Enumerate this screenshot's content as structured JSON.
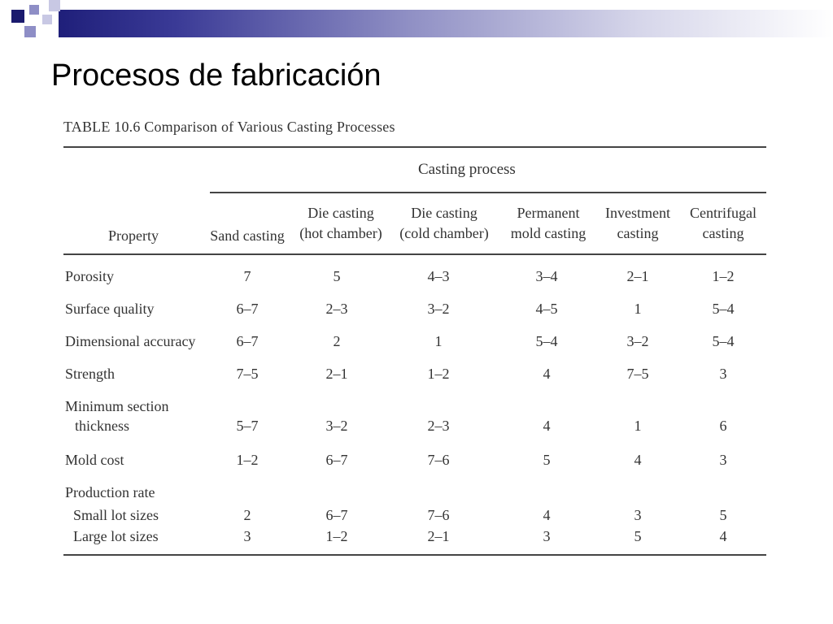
{
  "slide": {
    "title": "Procesos de fabricación"
  },
  "table": {
    "caption": "TABLE 10.6  Comparison of Various Casting Processes",
    "group_header": "Casting process",
    "columns": {
      "property": "Property",
      "c1": [
        "Sand casting"
      ],
      "c2": [
        "Die casting",
        "(hot chamber)"
      ],
      "c3": [
        "Die casting",
        "(cold chamber)"
      ],
      "c4": [
        "Permanent",
        "mold casting"
      ],
      "c5": [
        "Investment",
        "casting"
      ],
      "c6": [
        "Centrifugal",
        "casting"
      ]
    },
    "rows": [
      {
        "label": "Porosity",
        "values": [
          "7",
          "5",
          "4–3",
          "3–4",
          "2–1",
          "1–2"
        ]
      },
      {
        "label": "Surface quality",
        "values": [
          "6–7",
          "2–3",
          "3–2",
          "4–5",
          "1",
          "5–4"
        ]
      },
      {
        "label": "Dimensional accuracy",
        "values": [
          "6–7",
          "2",
          "1",
          "5–4",
          "3–2",
          "5–4"
        ]
      },
      {
        "label": "Strength",
        "values": [
          "7–5",
          "2–1",
          "1–2",
          "4",
          "7–5",
          "3"
        ]
      },
      {
        "label": "Minimum section",
        "label2": "thickness",
        "values": [
          "5–7",
          "3–2",
          "2–3",
          "4",
          "1",
          "6"
        ]
      },
      {
        "label": "Mold cost",
        "values": [
          "1–2",
          "6–7",
          "7–6",
          "5",
          "4",
          "3"
        ]
      },
      {
        "label": "Production rate",
        "values": []
      },
      {
        "label": "Small lot sizes",
        "values": [
          "2",
          "6–7",
          "7–6",
          "4",
          "3",
          "5"
        ]
      },
      {
        "label": "Large lot sizes",
        "values": [
          "3",
          "1–2",
          "2–1",
          "3",
          "5",
          "4"
        ]
      }
    ]
  },
  "colors": {
    "title_text": "#000000",
    "bar_dark": "#1f1f7a",
    "bar_light": "#8e8ec6",
    "scan_ink": "#333333"
  }
}
